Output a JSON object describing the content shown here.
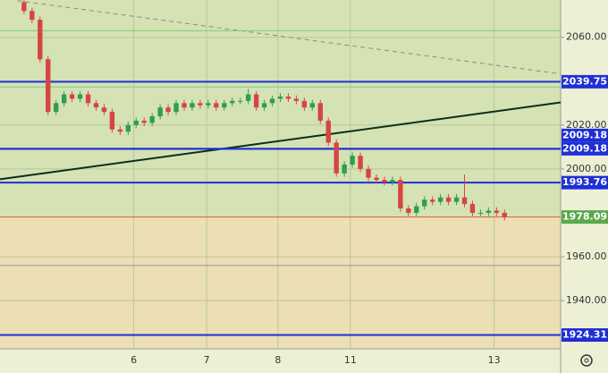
{
  "chart_data": {
    "type": "candlestick",
    "x": [
      3,
      4,
      5,
      6,
      7,
      8,
      9,
      10,
      11,
      12,
      13,
      14,
      15,
      16,
      17,
      18,
      19,
      20,
      21,
      22,
      23,
      24,
      25,
      26,
      27,
      28,
      29,
      30,
      31,
      32,
      33,
      34,
      35,
      36,
      37,
      38,
      39,
      40,
      41,
      42,
      43,
      44,
      45,
      46,
      47,
      48,
      49,
      50,
      51,
      52,
      53,
      54,
      55,
      56,
      57,
      58,
      59,
      60,
      61,
      62,
      63
    ],
    "open": [
      2076,
      2072,
      2068,
      2050,
      2026,
      2030,
      2034,
      2032,
      2034,
      2030,
      2028,
      2026,
      2018,
      2017,
      2020,
      2022,
      2021,
      2024,
      2028,
      2026,
      2030,
      2028,
      2030,
      2029,
      2030,
      2028,
      2030,
      2031,
      2031,
      2034,
      2028,
      2030,
      2032,
      2033,
      2032,
      2031,
      2028,
      2030,
      2022,
      2012,
      1998,
      2002,
      2006,
      2000,
      1996,
      1995,
      1994,
      1995,
      1982,
      1980,
      1983,
      1986,
      1985,
      1987,
      1985,
      1987,
      1984,
      1980,
      1980,
      1981,
      1980
    ],
    "high": [
      2077.5,
      2073.5,
      2069.5,
      2051.5,
      2031.5,
      2035.5,
      2035.5,
      2035.5,
      2035.5,
      2031.5,
      2029.5,
      2027.5,
      2019.5,
      2021.5,
      2023.5,
      2023.5,
      2025.5,
      2029.5,
      2029.5,
      2031.5,
      2031.5,
      2031.5,
      2031.5,
      2031.5,
      2031.5,
      2031.5,
      2032.5,
      2032.5,
      2036.5,
      2035.5,
      2031.5,
      2033.5,
      2034.5,
      2034.5,
      2033.5,
      2032.5,
      2031.5,
      2031.5,
      2023.5,
      2013.5,
      2003.5,
      2007.5,
      2007.5,
      2001.5,
      1997.5,
      1996.5,
      1996.5,
      1996.5,
      1983.5,
      1984.5,
      1987.5,
      1987.5,
      1988.5,
      1988.5,
      1988.5,
      1997.5,
      1985.5,
      1981.5,
      1982.5,
      1982.5,
      1981.5
    ],
    "low": [
      2070.5,
      2066.5,
      2048.5,
      2024.5,
      2024.5,
      2028.5,
      2030.5,
      2030.5,
      2028.5,
      2026.5,
      2024.5,
      2016.5,
      2015.5,
      2015.5,
      2018.5,
      2019.5,
      2019.5,
      2022.5,
      2024.5,
      2024.5,
      2026.5,
      2026.5,
      2027.5,
      2027.5,
      2026.5,
      2026.5,
      2028.5,
      2029.5,
      2029.5,
      2026.5,
      2026.5,
      2028.5,
      2030.5,
      2030.5,
      2029.5,
      2026.5,
      2026.5,
      2020.5,
      2010.5,
      1996.5,
      1996.5,
      2000.5,
      1998.5,
      1994.5,
      1993.5,
      1992.5,
      1992.5,
      1980.5,
      1978.5,
      1978.5,
      1981.5,
      1983.5,
      1983.5,
      1983.5,
      1983.5,
      1982.5,
      1978.5,
      1978.5,
      1978.5,
      1978.5,
      1976.5
    ],
    "close": [
      2072,
      2068,
      2050,
      2026,
      2030,
      2034,
      2032,
      2034,
      2030,
      2028,
      2026,
      2018,
      2017,
      2020,
      2022,
      2021,
      2024,
      2028,
      2026,
      2030,
      2028,
      2030,
      2029,
      2030,
      2028,
      2030,
      2031,
      2031,
      2034,
      2028,
      2030,
      2032,
      2033,
      2032,
      2031,
      2028,
      2030,
      2022,
      2012,
      1998,
      2002,
      2006,
      2000,
      1996,
      1995,
      1994,
      1995,
      1982,
      1980,
      1983,
      1986,
      1985,
      1987,
      1985,
      1987,
      1984,
      1980,
      1980,
      1981,
      1980,
      1978
    ],
    "up_color": "#2e9e4f",
    "down_color": "#d64541",
    "xlim": [
      0,
      70
    ],
    "xticks": [
      {
        "value": 16.7,
        "label": "6"
      },
      {
        "value": 25.8,
        "label": "7"
      },
      {
        "value": 34.7,
        "label": "8"
      },
      {
        "value": 43.75,
        "label": "11"
      },
      {
        "value": 61.7,
        "label": "13"
      }
    ],
    "ylim": [
      1918,
      2077
    ],
    "yticks": [
      {
        "value": 1940,
        "label": "1940.00"
      },
      {
        "value": 1960,
        "label": "1960.00"
      },
      {
        "value": 2000,
        "label": "2000.00"
      },
      {
        "value": 2020,
        "label": "2020.00"
      },
      {
        "value": 2060,
        "label": "2060.00"
      }
    ],
    "levels": [
      {
        "value": 2039.75,
        "label": "2039.75",
        "color": "#1f2fd6"
      },
      {
        "value": 2009.18,
        "label": "2009.18",
        "color": "#1f2fd6"
      },
      {
        "value": 2009.18,
        "label": "2009.18",
        "color": "#1f2fd6"
      },
      {
        "value": 1993.76,
        "label": "1993.76",
        "color": "#1f2fd6"
      },
      {
        "value": 1924.31,
        "label": "1924.31",
        "color": "#1f2fd6"
      },
      {
        "value": 1978.09,
        "label": "1978.09",
        "color": "#e05a4a",
        "label_color": "#5aa84a"
      },
      {
        "value": 2063,
        "color": "#6fd47a"
      },
      {
        "value": 2037.4,
        "color": "#6fd47a"
      },
      {
        "value": 1956,
        "color": "#9c8fb8"
      }
    ],
    "trendlines": [
      {
        "x": [
          0,
          70
        ],
        "y": [
          1995.3,
          2030.3
        ],
        "color": "#0d2e1a",
        "dashed": false
      },
      {
        "x": [
          2.2,
          70
        ],
        "y": [
          2076.7,
          2043.3
        ],
        "color": "#8a8a8a",
        "dashed": true
      }
    ]
  }
}
